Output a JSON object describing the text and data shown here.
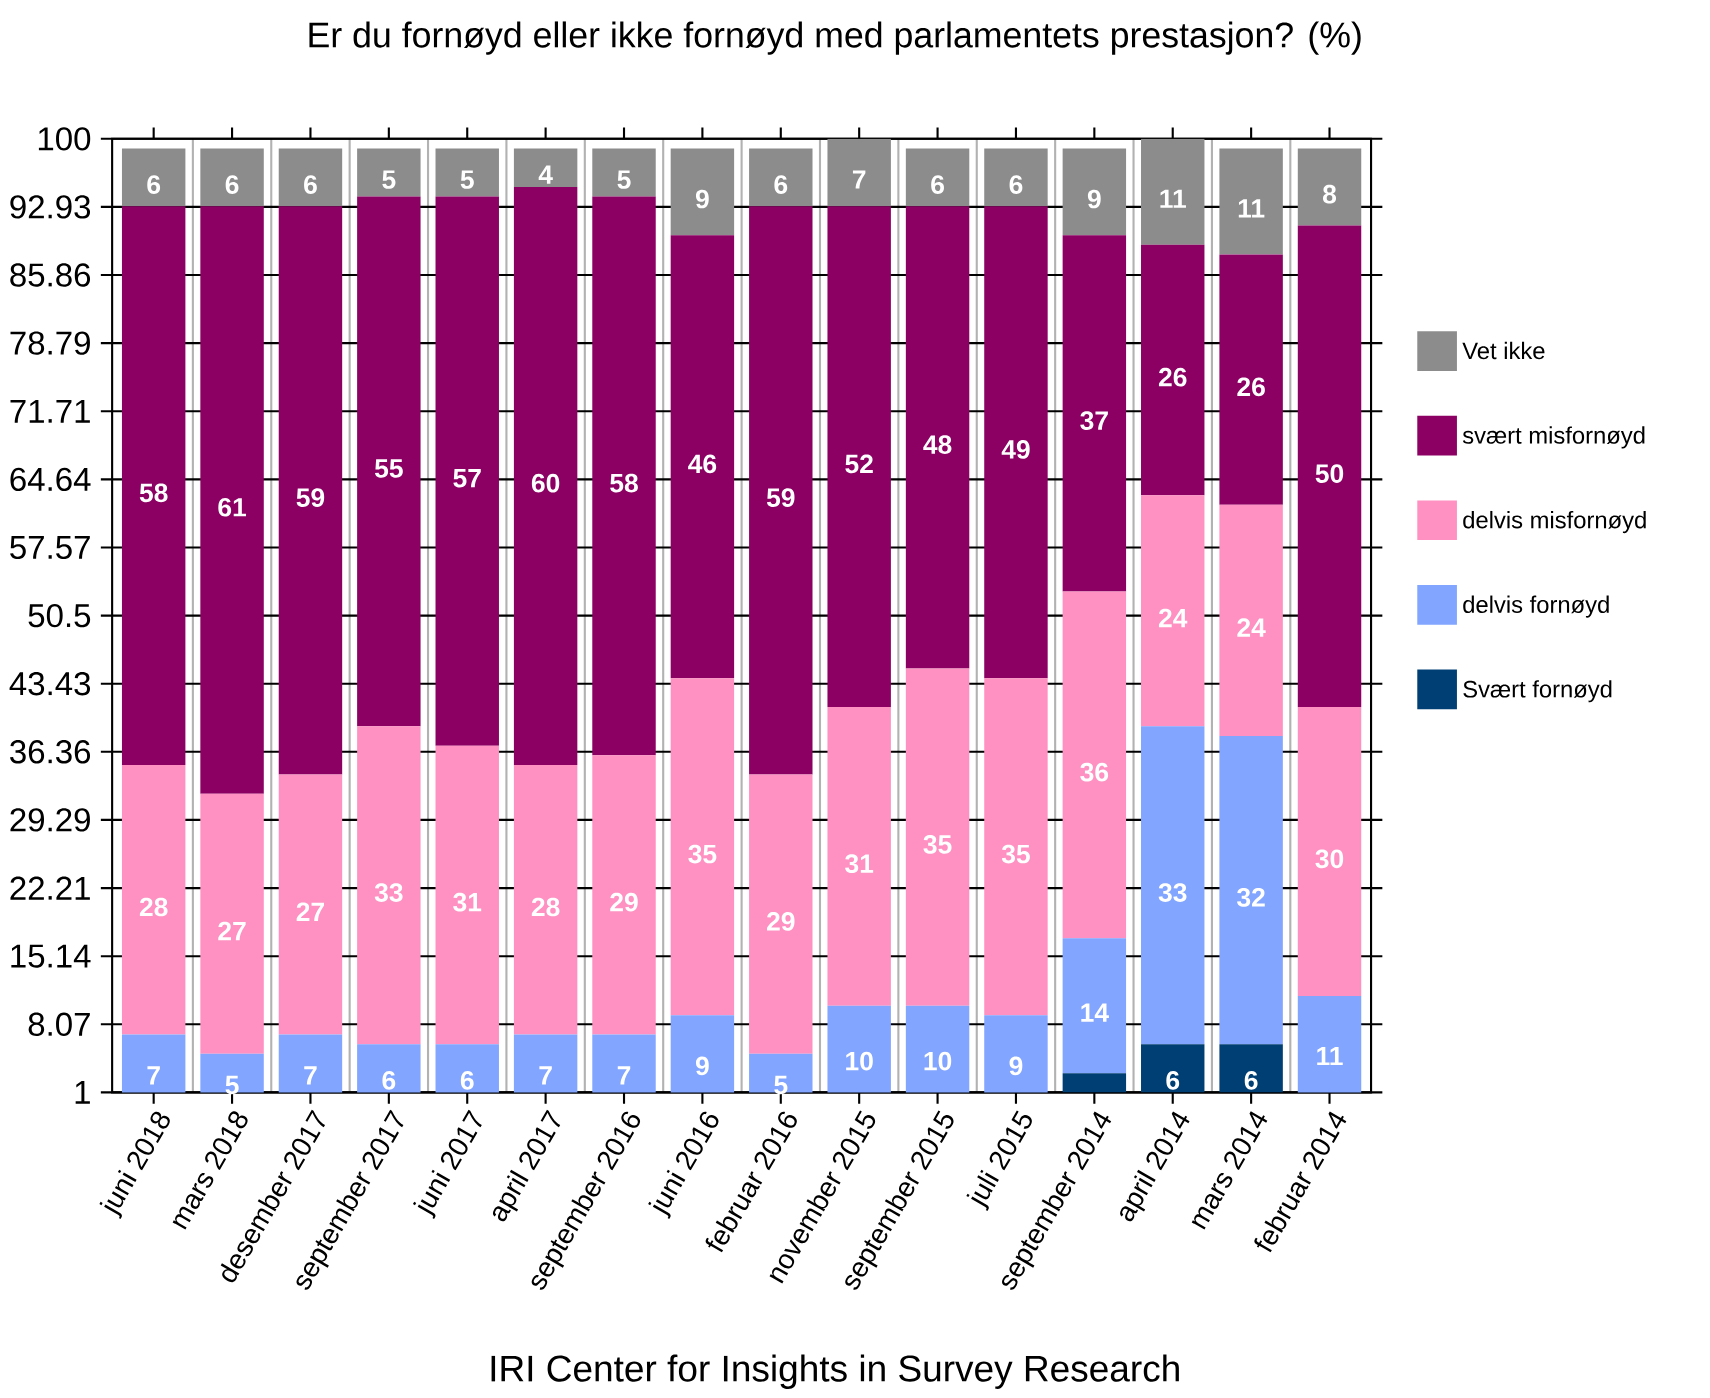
{
  "chart_data": {
    "type": "bar",
    "stacked": true,
    "title": "Er du fornøyd eller ikke fornøyd med parlamentets prestasjon? (%)",
    "xlabel": "IRI Center for Insights in Survey Research",
    "categories": [
      "juni 2018",
      "mars 2018",
      "desember 2017",
      "september 2017",
      "juni 2017",
      "april 2017",
      "september 2016",
      "juni 2016",
      "februar 2016",
      "november 2015",
      "september 2015",
      "juli 2015",
      "september 2014",
      "april 2014",
      "mars 2014",
      "februar 2014"
    ],
    "series": [
      {
        "name": "Svært fornøyd",
        "color": "#003f74",
        "values": [
          null,
          null,
          null,
          null,
          null,
          null,
          null,
          null,
          null,
          null,
          null,
          null,
          3,
          6,
          6,
          null
        ],
        "value_labels": [
          null,
          null,
          null,
          null,
          null,
          null,
          null,
          null,
          null,
          null,
          null,
          null,
          null,
          "6",
          "6",
          null
        ]
      },
      {
        "name": "delvis fornøyd",
        "color": "#82a5ff",
        "values": [
          7,
          5,
          7,
          6,
          6,
          7,
          7,
          9,
          5,
          10,
          10,
          9,
          14,
          33,
          32,
          11
        ],
        "value_labels": [
          "7",
          "5",
          "7",
          "6",
          "6",
          "7",
          "7",
          "9",
          "5",
          "10",
          "10",
          "9",
          "14",
          "33",
          "32",
          "11"
        ]
      },
      {
        "name": "delvis misfornøyd",
        "color": "#ff91c2",
        "values": [
          28,
          27,
          27,
          33,
          31,
          28,
          29,
          35,
          29,
          31,
          35,
          35,
          36,
          24,
          24,
          30
        ],
        "value_labels": [
          "28",
          "27",
          "27",
          "33",
          "31",
          "28",
          "29",
          "35",
          "29",
          "31",
          "35",
          "35",
          "36",
          "24",
          "24",
          "30"
        ]
      },
      {
        "name": "svært misfornøyd",
        "color": "#8b0062",
        "values": [
          58,
          61,
          59,
          55,
          57,
          60,
          58,
          46,
          59,
          52,
          48,
          49,
          37,
          26,
          26,
          50
        ],
        "value_labels": [
          "58",
          "61",
          "59",
          "55",
          "57",
          "60",
          "58",
          "46",
          "59",
          "52",
          "48",
          "49",
          "37",
          "26",
          "26",
          "50"
        ]
      },
      {
        "name": "Vet ikke",
        "color": "#8c8c8c",
        "values": [
          6,
          6,
          6,
          5,
          5,
          4,
          5,
          9,
          6,
          7,
          6,
          6,
          9,
          11,
          11,
          8
        ],
        "value_labels": [
          "6",
          "6",
          "6",
          "5",
          "5",
          "4",
          "5",
          "9",
          "6",
          "7",
          "6",
          "6",
          "9",
          "11",
          "11",
          "8"
        ]
      }
    ],
    "ylim": [
      1,
      100
    ],
    "yticks": [
      1,
      8.07,
      15.14,
      22.21,
      29.29,
      36.36,
      43.43,
      50.5,
      57.57,
      64.64,
      71.71,
      78.79,
      85.86,
      92.93,
      100
    ],
    "grid": true,
    "legend": "right"
  }
}
